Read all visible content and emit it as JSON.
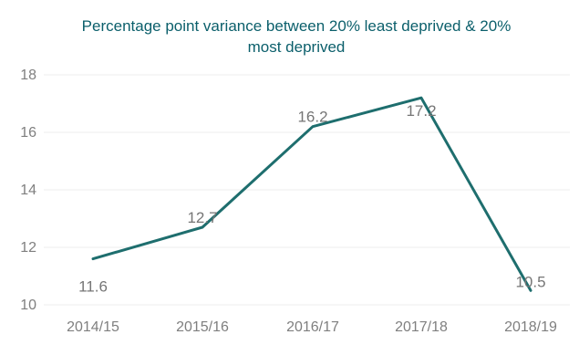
{
  "chart_data": {
    "type": "line",
    "title": [
      "Percentage point variance between 20% least deprived & 20%",
      "most deprived"
    ],
    "categories": [
      "2014/15",
      "2015/16",
      "2016/17",
      "2017/18",
      "2018/19"
    ],
    "series": [
      {
        "values": [
          11.6,
          12.7,
          16.2,
          17.2,
          10.5
        ],
        "labels": [
          "11.6",
          "12.7",
          "16.2",
          "17.2",
          "10.5"
        ]
      }
    ],
    "ylim": [
      10,
      18
    ],
    "yticks": [
      "10",
      "12",
      "14",
      "16",
      "18"
    ],
    "grid": true,
    "line_color": "#1e6e6e",
    "title_color": "#0b5f6b"
  }
}
